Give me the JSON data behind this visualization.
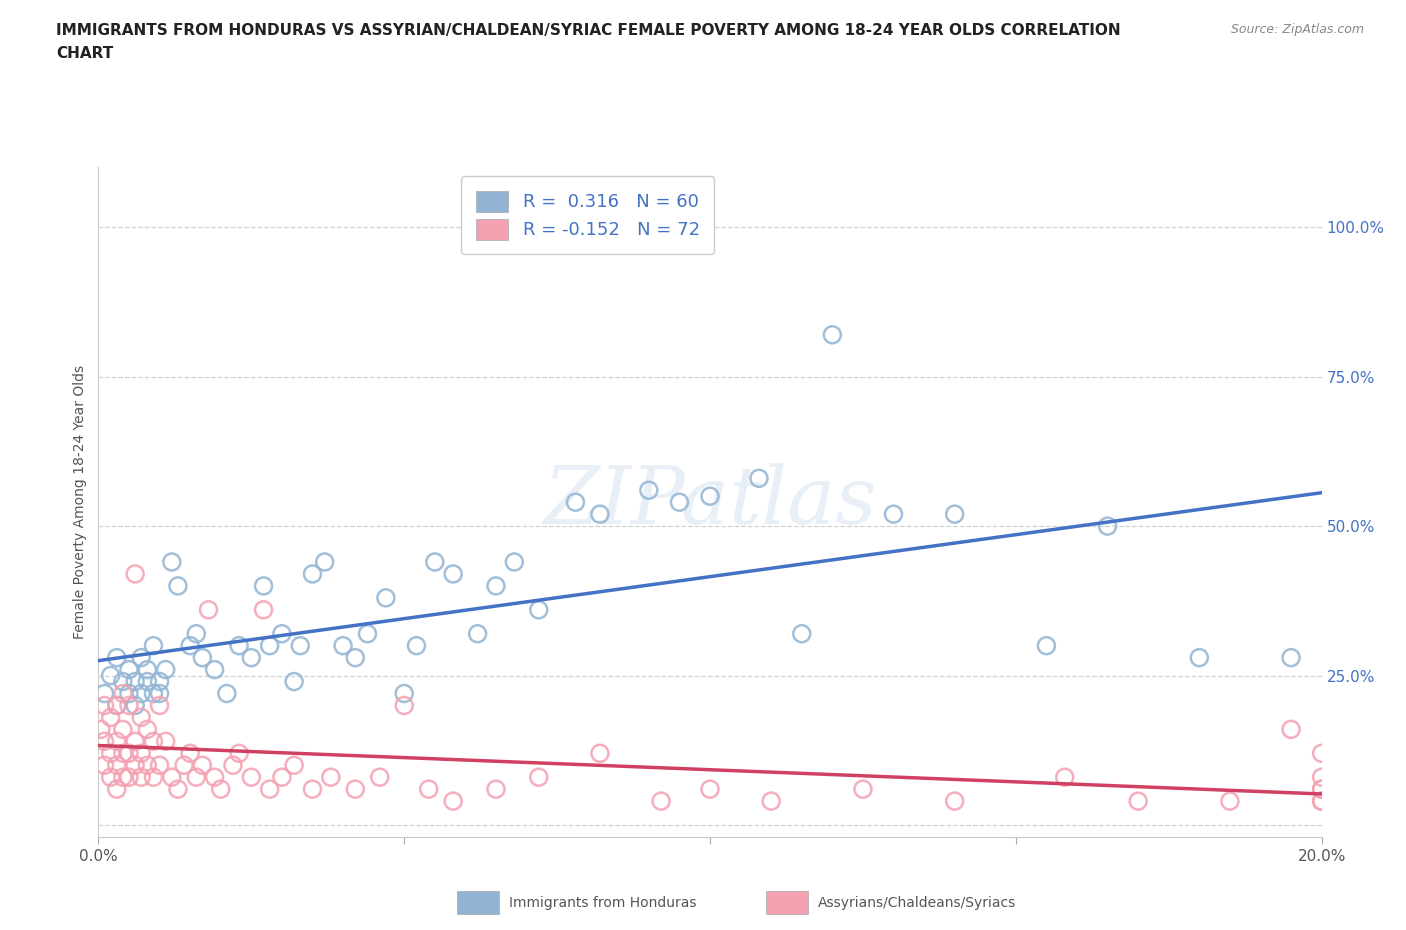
{
  "title_line1": "IMMIGRANTS FROM HONDURAS VS ASSYRIAN/CHALDEAN/SYRIAC FEMALE POVERTY AMONG 18-24 YEAR OLDS CORRELATION",
  "title_line2": "CHART",
  "source_text": "Source: ZipAtlas.com",
  "ylabel": "Female Poverty Among 18-24 Year Olds",
  "xlim": [
    0.0,
    0.2
  ],
  "ylim": [
    -0.02,
    1.1
  ],
  "xticks": [
    0.0,
    0.05,
    0.1,
    0.15,
    0.2
  ],
  "xticklabels": [
    "0.0%",
    "",
    "",
    "",
    "20.0%"
  ],
  "ytick_positions": [
    0.0,
    0.25,
    0.5,
    0.75,
    1.0
  ],
  "ytick_labels": [
    "",
    "25.0%",
    "50.0%",
    "75.0%",
    "100.0%"
  ],
  "watermark": "ZIPatlas",
  "blue_scatter_color": "#92b4d4",
  "blue_line_color": "#4472C4",
  "pink_scatter_color": "#f4a0b0",
  "pink_line_color": "#d04060",
  "ytick_color": "#4472C4",
  "legend_r_blue": "0.316",
  "legend_n_blue": "60",
  "legend_r_pink": "-0.152",
  "legend_n_pink": "72",
  "legend_label_blue": "Immigrants from Honduras",
  "legend_label_pink": "Assyrians/Chaldeans/Syriacs",
  "grid_color": "#cccccc",
  "blue_points_x": [
    0.001,
    0.002,
    0.003,
    0.003,
    0.004,
    0.005,
    0.005,
    0.006,
    0.006,
    0.007,
    0.007,
    0.008,
    0.008,
    0.009,
    0.009,
    0.01,
    0.01,
    0.011,
    0.012,
    0.013,
    0.015,
    0.016,
    0.017,
    0.019,
    0.021,
    0.023,
    0.025,
    0.027,
    0.028,
    0.03,
    0.032,
    0.033,
    0.035,
    0.037,
    0.04,
    0.042,
    0.044,
    0.047,
    0.05,
    0.052,
    0.055,
    0.058,
    0.062,
    0.065,
    0.068,
    0.072,
    0.078,
    0.082,
    0.09,
    0.095,
    0.1,
    0.108,
    0.115,
    0.12,
    0.13,
    0.14,
    0.155,
    0.165,
    0.18,
    0.195
  ],
  "blue_points_y": [
    0.22,
    0.25,
    0.2,
    0.28,
    0.24,
    0.22,
    0.26,
    0.2,
    0.24,
    0.22,
    0.28,
    0.24,
    0.26,
    0.22,
    0.3,
    0.24,
    0.22,
    0.26,
    0.44,
    0.4,
    0.3,
    0.32,
    0.28,
    0.26,
    0.22,
    0.3,
    0.28,
    0.4,
    0.3,
    0.32,
    0.24,
    0.3,
    0.42,
    0.44,
    0.3,
    0.28,
    0.32,
    0.38,
    0.22,
    0.3,
    0.44,
    0.42,
    0.32,
    0.4,
    0.44,
    0.36,
    0.54,
    0.52,
    0.56,
    0.54,
    0.55,
    0.58,
    0.32,
    0.82,
    0.52,
    0.52,
    0.3,
    0.5,
    0.28,
    0.28
  ],
  "pink_points_x": [
    0.0004,
    0.001,
    0.001,
    0.001,
    0.002,
    0.002,
    0.002,
    0.003,
    0.003,
    0.003,
    0.003,
    0.004,
    0.004,
    0.004,
    0.004,
    0.005,
    0.005,
    0.005,
    0.006,
    0.006,
    0.006,
    0.007,
    0.007,
    0.007,
    0.008,
    0.008,
    0.009,
    0.009,
    0.01,
    0.01,
    0.011,
    0.012,
    0.013,
    0.014,
    0.015,
    0.016,
    0.017,
    0.018,
    0.019,
    0.02,
    0.022,
    0.023,
    0.025,
    0.027,
    0.028,
    0.03,
    0.032,
    0.035,
    0.038,
    0.042,
    0.046,
    0.05,
    0.054,
    0.058,
    0.065,
    0.072,
    0.082,
    0.092,
    0.1,
    0.11,
    0.125,
    0.14,
    0.158,
    0.17,
    0.185,
    0.195,
    0.2,
    0.2,
    0.2,
    0.2,
    0.2,
    0.2
  ],
  "pink_points_y": [
    0.16,
    0.1,
    0.14,
    0.2,
    0.08,
    0.12,
    0.18,
    0.06,
    0.1,
    0.14,
    0.2,
    0.08,
    0.12,
    0.16,
    0.22,
    0.08,
    0.12,
    0.2,
    0.1,
    0.14,
    0.42,
    0.08,
    0.12,
    0.18,
    0.1,
    0.16,
    0.08,
    0.14,
    0.1,
    0.2,
    0.14,
    0.08,
    0.06,
    0.1,
    0.12,
    0.08,
    0.1,
    0.36,
    0.08,
    0.06,
    0.1,
    0.12,
    0.08,
    0.36,
    0.06,
    0.08,
    0.1,
    0.06,
    0.08,
    0.06,
    0.08,
    0.2,
    0.06,
    0.04,
    0.06,
    0.08,
    0.12,
    0.04,
    0.06,
    0.04,
    0.06,
    0.04,
    0.08,
    0.04,
    0.04,
    0.16,
    0.12,
    0.06,
    0.04,
    0.06,
    0.04,
    0.08
  ]
}
